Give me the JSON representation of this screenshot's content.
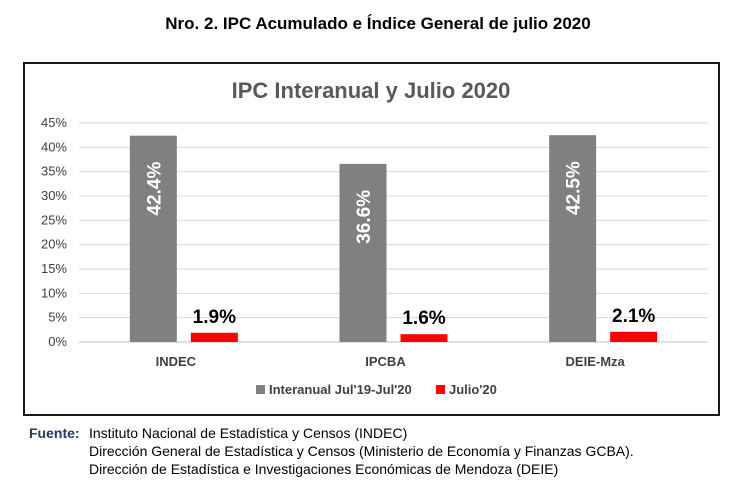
{
  "heading": "Nro. 2. IPC Acumulado e Índice General de julio 2020",
  "chart_data": {
    "type": "bar",
    "title": "IPC Interanual y Julio 2020",
    "categories": [
      "INDEC",
      "IPCBA",
      "DEIE-Mza"
    ],
    "series": [
      {
        "name": "Interanual Jul'19-Jul'20",
        "values": [
          42.4,
          36.6,
          42.5
        ],
        "labels": [
          "42.4%",
          "36.6%",
          "42.5%"
        ],
        "color": "#808080"
      },
      {
        "name": "Julio'20",
        "values": [
          1.9,
          1.6,
          2.1
        ],
        "labels": [
          "1.9%",
          "1.6%",
          "2.1%"
        ],
        "color": "#ff0000"
      }
    ],
    "ylim": [
      0,
      45
    ],
    "yticks": [
      "0%",
      "5%",
      "10%",
      "15%",
      "20%",
      "25%",
      "30%",
      "35%",
      "40%",
      "45%"
    ],
    "grid": true,
    "legend": "bottom"
  },
  "source": {
    "label": "Fuente:",
    "lines": [
      "Instituto Nacional de Estadística y Censos (INDEC)",
      "Dirección General de Estadística y Censos (Ministerio de Economía y Finanzas GCBA).",
      "Dirección de Estadística e Investigaciones Económicas de Mendoza (DEIE)"
    ]
  }
}
